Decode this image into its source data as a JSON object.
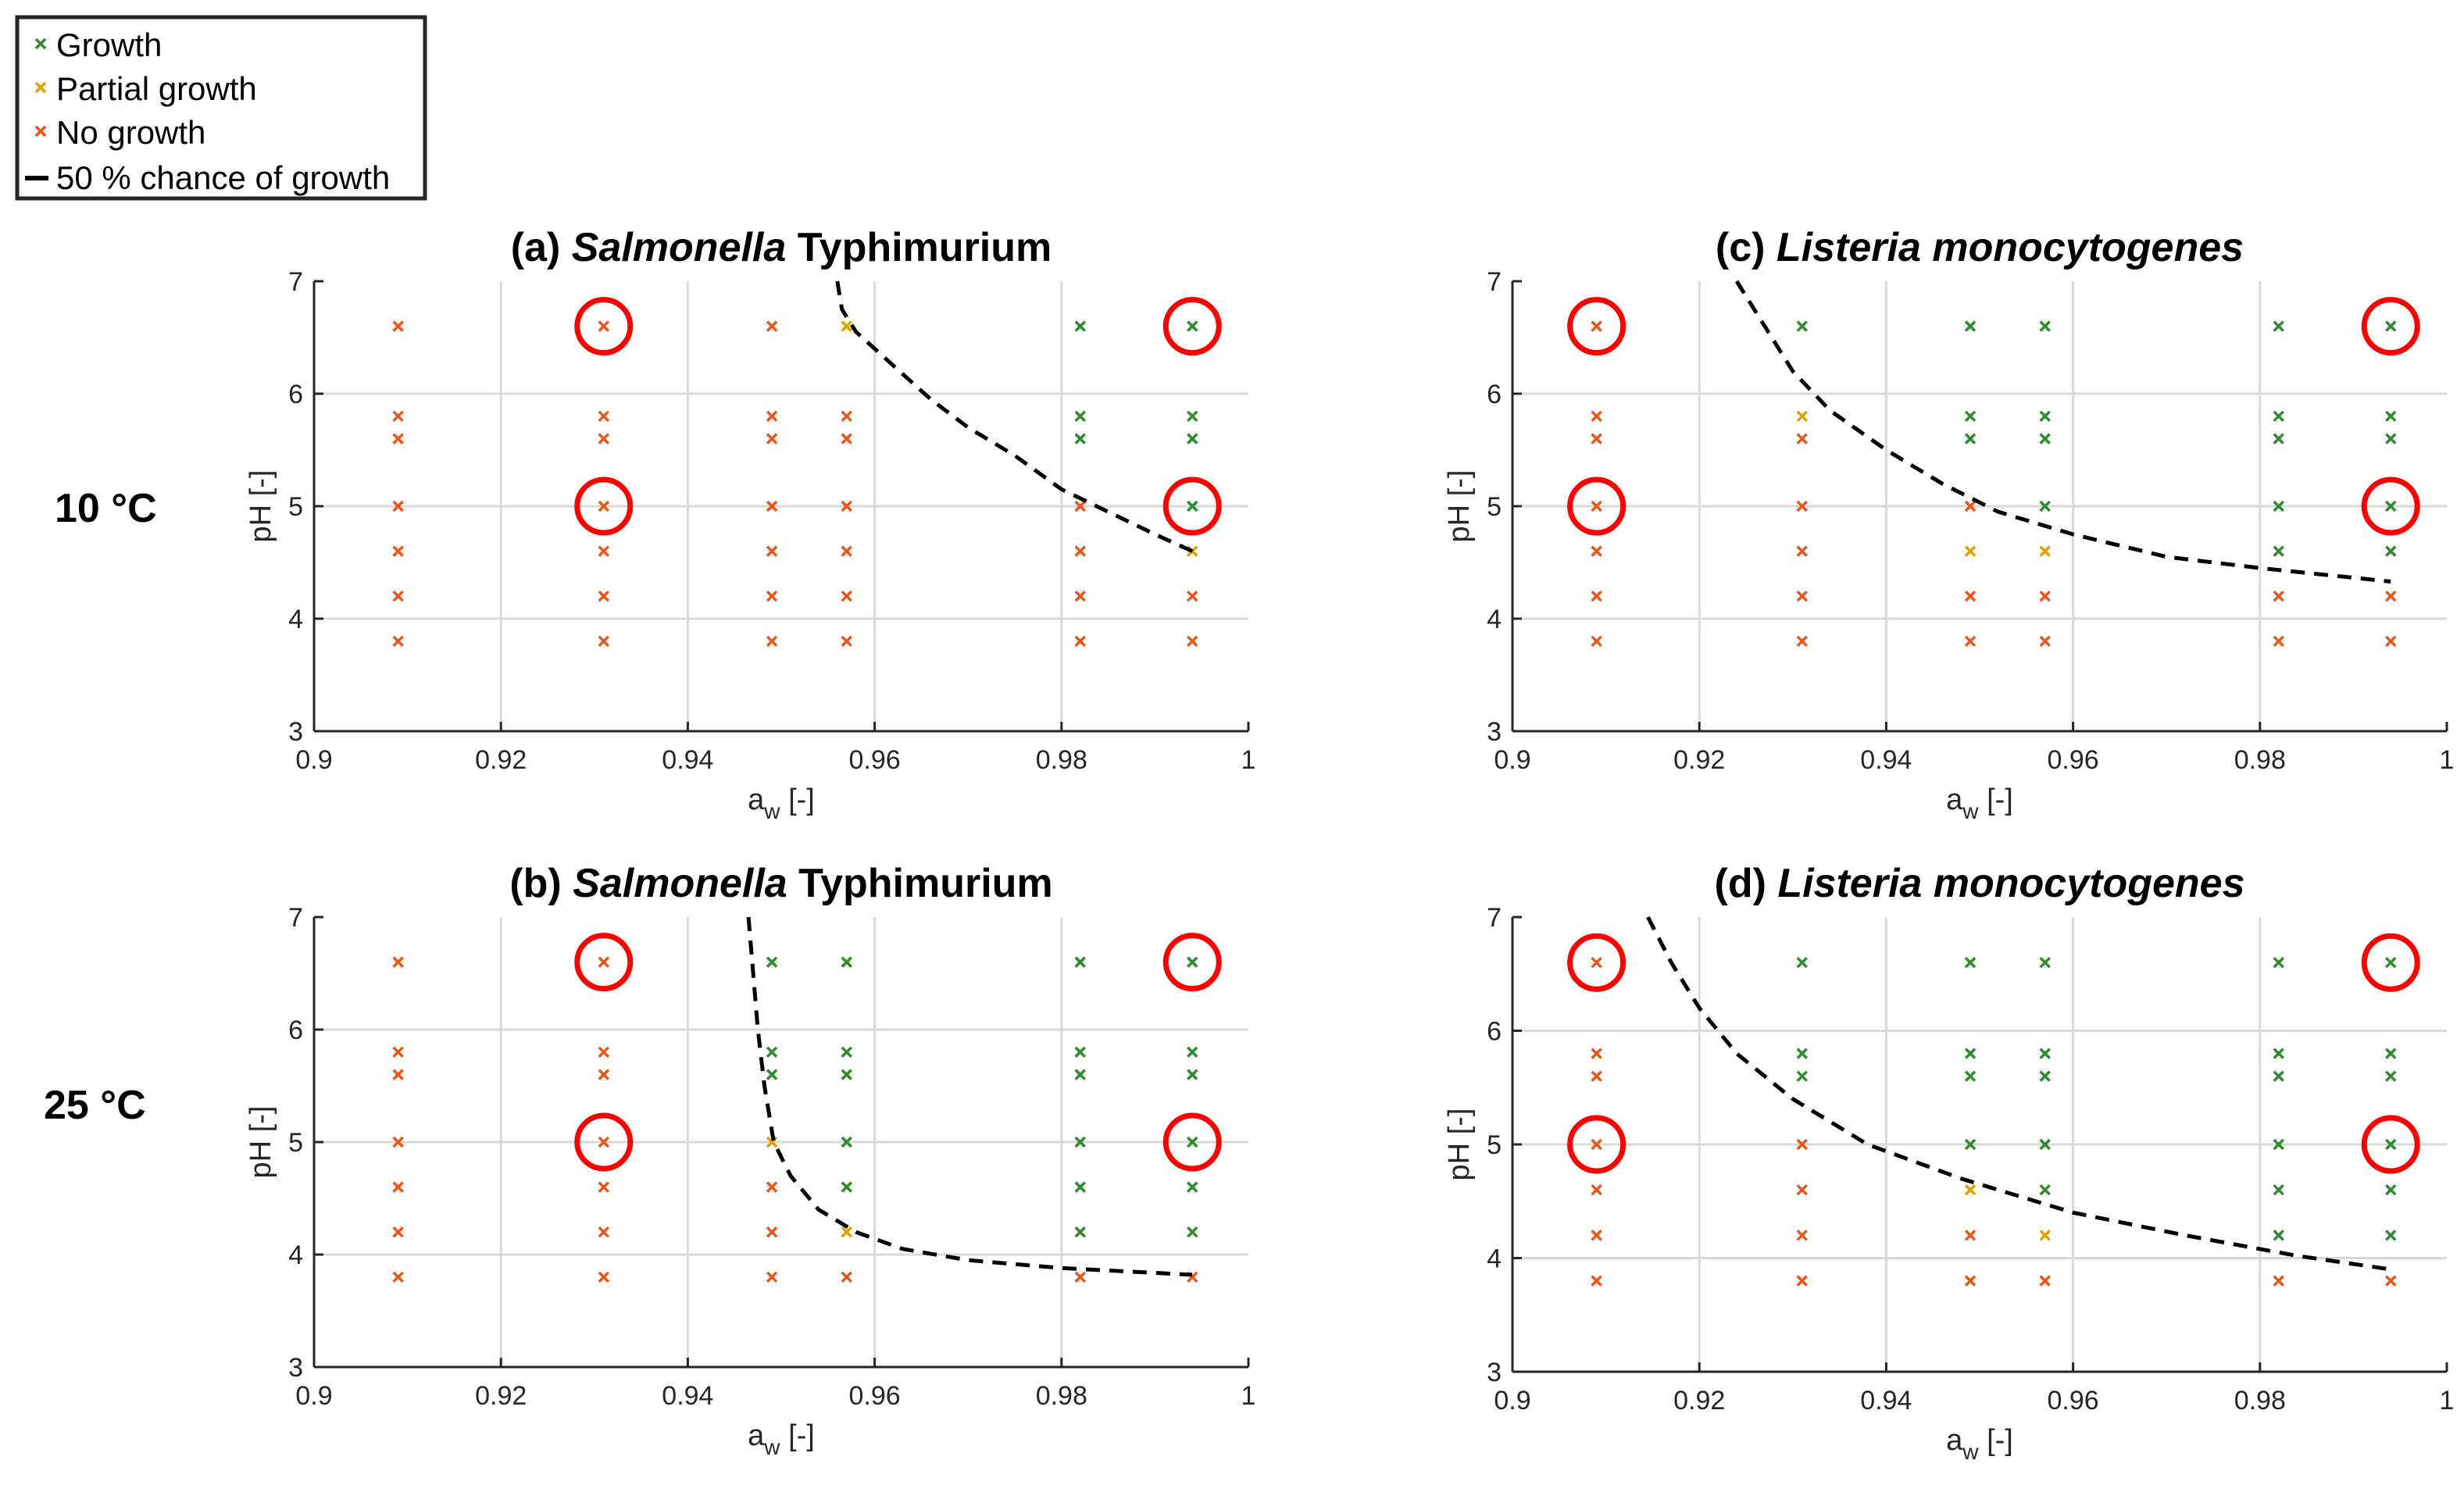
{
  "legend": {
    "growth": "Growth",
    "partial": "Partial growth",
    "none": "No growth",
    "curve": "50 % chance of growth"
  },
  "colors": {
    "growth": "#2e8b2e",
    "partial": "#e0a000",
    "none": "#e8561a",
    "circle": "#ff0000",
    "curve": "#000000",
    "grid": "#d9d9d9"
  },
  "row_labels": {
    "top": "10 °C",
    "bottom": "25 °C"
  },
  "chart_data": [
    {
      "type": "scatter",
      "id": "a",
      "title_prefix": "(a)",
      "title_italic": "Salmonella",
      "title_rest": " Typhimurium",
      "xlabel_main": "a",
      "xlabel_sub": "w",
      "xlabel_suffix": " [-]",
      "ylabel": "pH [-]",
      "xlim": [
        0.9,
        1.0
      ],
      "ylim": [
        3,
        7
      ],
      "xticks": [
        "0.9",
        "0.92",
        "0.94",
        "0.96",
        "0.98",
        "1"
      ],
      "yticks": [
        "3",
        "4",
        "5",
        "6",
        "7"
      ],
      "growth": [
        [
          0.982,
          6.6
        ],
        [
          0.982,
          5.8
        ],
        [
          0.982,
          5.6
        ],
        [
          0.994,
          6.6
        ],
        [
          0.994,
          5.8
        ],
        [
          0.994,
          5.6
        ],
        [
          0.994,
          5.0
        ]
      ],
      "partial": [
        [
          0.957,
          6.6
        ],
        [
          0.994,
          4.6
        ]
      ],
      "no_growth": [
        [
          0.909,
          6.6
        ],
        [
          0.909,
          5.8
        ],
        [
          0.909,
          5.6
        ],
        [
          0.909,
          5.0
        ],
        [
          0.909,
          4.6
        ],
        [
          0.909,
          4.2
        ],
        [
          0.909,
          3.8
        ],
        [
          0.931,
          6.6
        ],
        [
          0.931,
          5.8
        ],
        [
          0.931,
          5.6
        ],
        [
          0.931,
          5.0
        ],
        [
          0.931,
          4.6
        ],
        [
          0.931,
          4.2
        ],
        [
          0.931,
          3.8
        ],
        [
          0.949,
          6.6
        ],
        [
          0.949,
          5.8
        ],
        [
          0.949,
          5.6
        ],
        [
          0.949,
          5.0
        ],
        [
          0.949,
          4.6
        ],
        [
          0.949,
          4.2
        ],
        [
          0.949,
          3.8
        ],
        [
          0.957,
          5.8
        ],
        [
          0.957,
          5.6
        ],
        [
          0.957,
          5.0
        ],
        [
          0.957,
          4.6
        ],
        [
          0.957,
          4.2
        ],
        [
          0.957,
          3.8
        ],
        [
          0.982,
          5.0
        ],
        [
          0.982,
          4.6
        ],
        [
          0.982,
          4.2
        ],
        [
          0.982,
          3.8
        ],
        [
          0.994,
          4.2
        ],
        [
          0.994,
          3.8
        ]
      ],
      "circled": [
        [
          0.931,
          6.6
        ],
        [
          0.931,
          5.0
        ],
        [
          0.994,
          6.6
        ],
        [
          0.994,
          5.0
        ]
      ],
      "curve": [
        [
          0.956,
          7.0
        ],
        [
          0.9565,
          6.75
        ],
        [
          0.958,
          6.55
        ],
        [
          0.962,
          6.25
        ],
        [
          0.966,
          5.95
        ],
        [
          0.97,
          5.7
        ],
        [
          0.975,
          5.45
        ],
        [
          0.98,
          5.15
        ],
        [
          0.985,
          4.95
        ],
        [
          0.99,
          4.75
        ],
        [
          0.994,
          4.6
        ]
      ]
    },
    {
      "type": "scatter",
      "id": "b",
      "title_prefix": "(b)",
      "title_italic": "Salmonella",
      "title_rest": " Typhimurium",
      "xlabel_main": "a",
      "xlabel_sub": "w",
      "xlabel_suffix": " [-]",
      "ylabel": "pH [-]",
      "xlim": [
        0.9,
        1.0
      ],
      "ylim": [
        3,
        7
      ],
      "xticks": [
        "0.9",
        "0.92",
        "0.94",
        "0.96",
        "0.98",
        "1"
      ],
      "yticks": [
        "3",
        "4",
        "5",
        "6",
        "7"
      ],
      "growth": [
        [
          0.949,
          6.6
        ],
        [
          0.949,
          5.8
        ],
        [
          0.949,
          5.6
        ],
        [
          0.957,
          6.6
        ],
        [
          0.957,
          5.8
        ],
        [
          0.957,
          5.6
        ],
        [
          0.957,
          5.0
        ],
        [
          0.957,
          4.6
        ],
        [
          0.982,
          6.6
        ],
        [
          0.982,
          5.8
        ],
        [
          0.982,
          5.6
        ],
        [
          0.982,
          5.0
        ],
        [
          0.982,
          4.6
        ],
        [
          0.982,
          4.2
        ],
        [
          0.994,
          6.6
        ],
        [
          0.994,
          5.8
        ],
        [
          0.994,
          5.6
        ],
        [
          0.994,
          5.0
        ],
        [
          0.994,
          4.6
        ],
        [
          0.994,
          4.2
        ]
      ],
      "partial": [
        [
          0.949,
          5.0
        ],
        [
          0.957,
          4.2
        ]
      ],
      "no_growth": [
        [
          0.909,
          6.6
        ],
        [
          0.909,
          5.8
        ],
        [
          0.909,
          5.6
        ],
        [
          0.909,
          5.0
        ],
        [
          0.909,
          4.6
        ],
        [
          0.909,
          4.2
        ],
        [
          0.909,
          3.8
        ],
        [
          0.931,
          6.6
        ],
        [
          0.931,
          5.8
        ],
        [
          0.931,
          5.6
        ],
        [
          0.931,
          5.0
        ],
        [
          0.931,
          4.6
        ],
        [
          0.931,
          4.2
        ],
        [
          0.931,
          3.8
        ],
        [
          0.949,
          4.6
        ],
        [
          0.949,
          4.2
        ],
        [
          0.949,
          3.8
        ],
        [
          0.957,
          3.8
        ],
        [
          0.982,
          3.8
        ],
        [
          0.994,
          3.8
        ]
      ],
      "circled": [
        [
          0.931,
          6.6
        ],
        [
          0.931,
          5.0
        ],
        [
          0.994,
          6.6
        ],
        [
          0.994,
          5.0
        ]
      ],
      "curve": [
        [
          0.9465,
          7.0
        ],
        [
          0.947,
          6.5
        ],
        [
          0.9475,
          6.0
        ],
        [
          0.9482,
          5.5
        ],
        [
          0.9492,
          5.0
        ],
        [
          0.951,
          4.7
        ],
        [
          0.954,
          4.4
        ],
        [
          0.958,
          4.2
        ],
        [
          0.963,
          4.05
        ],
        [
          0.97,
          3.95
        ],
        [
          0.98,
          3.88
        ],
        [
          0.994,
          3.82
        ]
      ]
    },
    {
      "type": "scatter",
      "id": "c",
      "title_prefix": "(c)",
      "title_italic": "Listeria monocytogenes",
      "title_rest": "",
      "xlabel_main": "a",
      "xlabel_sub": "w",
      "xlabel_suffix": " [-]",
      "ylabel": "pH [-]",
      "xlim": [
        0.9,
        1.0
      ],
      "ylim": [
        3,
        7
      ],
      "xticks": [
        "0.9",
        "0.92",
        "0.94",
        "0.96",
        "0.98",
        "1"
      ],
      "yticks": [
        "3",
        "4",
        "5",
        "6",
        "7"
      ],
      "growth": [
        [
          0.931,
          6.6
        ],
        [
          0.949,
          6.6
        ],
        [
          0.949,
          5.8
        ],
        [
          0.949,
          5.6
        ],
        [
          0.957,
          6.6
        ],
        [
          0.957,
          5.8
        ],
        [
          0.957,
          5.6
        ],
        [
          0.957,
          5.0
        ],
        [
          0.982,
          6.6
        ],
        [
          0.982,
          5.8
        ],
        [
          0.982,
          5.6
        ],
        [
          0.982,
          5.0
        ],
        [
          0.982,
          4.6
        ],
        [
          0.994,
          6.6
        ],
        [
          0.994,
          5.8
        ],
        [
          0.994,
          5.6
        ],
        [
          0.994,
          5.0
        ],
        [
          0.994,
          4.6
        ]
      ],
      "partial": [
        [
          0.931,
          5.8
        ],
        [
          0.949,
          4.6
        ],
        [
          0.957,
          4.6
        ]
      ],
      "no_growth": [
        [
          0.909,
          6.6
        ],
        [
          0.909,
          5.8
        ],
        [
          0.909,
          5.6
        ],
        [
          0.909,
          5.0
        ],
        [
          0.909,
          4.6
        ],
        [
          0.909,
          4.2
        ],
        [
          0.909,
          3.8
        ],
        [
          0.931,
          5.6
        ],
        [
          0.931,
          5.0
        ],
        [
          0.931,
          4.6
        ],
        [
          0.931,
          4.2
        ],
        [
          0.931,
          3.8
        ],
        [
          0.949,
          5.0
        ],
        [
          0.949,
          4.2
        ],
        [
          0.949,
          3.8
        ],
        [
          0.957,
          4.2
        ],
        [
          0.957,
          3.8
        ],
        [
          0.982,
          4.2
        ],
        [
          0.982,
          3.8
        ],
        [
          0.994,
          4.2
        ],
        [
          0.994,
          3.8
        ]
      ],
      "circled": [
        [
          0.909,
          6.6
        ],
        [
          0.909,
          5.0
        ],
        [
          0.994,
          6.6
        ],
        [
          0.994,
          5.0
        ]
      ],
      "curve": [
        [
          0.924,
          7.0
        ],
        [
          0.927,
          6.6
        ],
        [
          0.93,
          6.2
        ],
        [
          0.934,
          5.85
        ],
        [
          0.94,
          5.5
        ],
        [
          0.946,
          5.2
        ],
        [
          0.952,
          4.95
        ],
        [
          0.96,
          4.75
        ],
        [
          0.97,
          4.55
        ],
        [
          0.98,
          4.45
        ],
        [
          0.994,
          4.33
        ]
      ]
    },
    {
      "type": "scatter",
      "id": "d",
      "title_prefix": "(d)",
      "title_italic": "Listeria monocytogenes",
      "title_rest": "",
      "xlabel_main": "a",
      "xlabel_sub": "w",
      "xlabel_suffix": " [-]",
      "ylabel": "pH [-]",
      "xlim": [
        0.9,
        1.0
      ],
      "ylim": [
        3,
        7
      ],
      "xticks": [
        "0.9",
        "0.92",
        "0.94",
        "0.96",
        "0.98",
        "1"
      ],
      "yticks": [
        "3",
        "4",
        "5",
        "6",
        "7"
      ],
      "growth": [
        [
          0.931,
          6.6
        ],
        [
          0.931,
          5.8
        ],
        [
          0.931,
          5.6
        ],
        [
          0.949,
          6.6
        ],
        [
          0.949,
          5.8
        ],
        [
          0.949,
          5.6
        ],
        [
          0.949,
          5.0
        ],
        [
          0.957,
          6.6
        ],
        [
          0.957,
          5.8
        ],
        [
          0.957,
          5.6
        ],
        [
          0.957,
          5.0
        ],
        [
          0.957,
          4.6
        ],
        [
          0.982,
          6.6
        ],
        [
          0.982,
          5.8
        ],
        [
          0.982,
          5.6
        ],
        [
          0.982,
          5.0
        ],
        [
          0.982,
          4.6
        ],
        [
          0.982,
          4.2
        ],
        [
          0.994,
          6.6
        ],
        [
          0.994,
          5.8
        ],
        [
          0.994,
          5.6
        ],
        [
          0.994,
          5.0
        ],
        [
          0.994,
          4.6
        ],
        [
          0.994,
          4.2
        ]
      ],
      "partial": [
        [
          0.949,
          4.6
        ],
        [
          0.957,
          4.2
        ]
      ],
      "no_growth": [
        [
          0.909,
          6.6
        ],
        [
          0.909,
          5.8
        ],
        [
          0.909,
          5.6
        ],
        [
          0.909,
          5.0
        ],
        [
          0.909,
          4.6
        ],
        [
          0.909,
          4.2
        ],
        [
          0.909,
          3.8
        ],
        [
          0.931,
          5.0
        ],
        [
          0.931,
          4.6
        ],
        [
          0.931,
          4.2
        ],
        [
          0.931,
          3.8
        ],
        [
          0.949,
          4.2
        ],
        [
          0.949,
          3.8
        ],
        [
          0.957,
          3.8
        ],
        [
          0.982,
          3.8
        ],
        [
          0.994,
          3.8
        ]
      ],
      "circled": [
        [
          0.909,
          6.6
        ],
        [
          0.909,
          5.0
        ],
        [
          0.994,
          6.6
        ],
        [
          0.994,
          5.0
        ]
      ],
      "curve": [
        [
          0.9145,
          7.0
        ],
        [
          0.917,
          6.6
        ],
        [
          0.92,
          6.2
        ],
        [
          0.924,
          5.8
        ],
        [
          0.93,
          5.4
        ],
        [
          0.938,
          5.0
        ],
        [
          0.948,
          4.7
        ],
        [
          0.96,
          4.4
        ],
        [
          0.972,
          4.2
        ],
        [
          0.984,
          4.02
        ],
        [
          0.994,
          3.9
        ]
      ]
    }
  ]
}
